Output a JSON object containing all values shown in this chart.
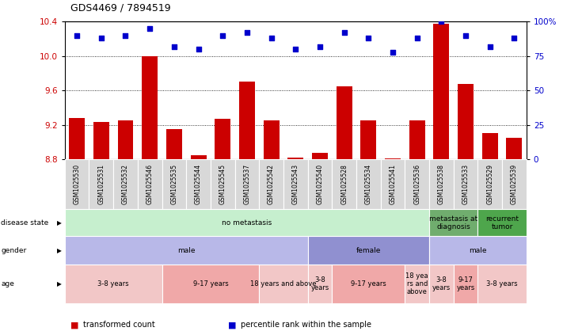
{
  "title": "GDS4469 / 7894519",
  "samples": [
    "GSM1025530",
    "GSM1025531",
    "GSM1025532",
    "GSM1025546",
    "GSM1025535",
    "GSM1025544",
    "GSM1025545",
    "GSM1025537",
    "GSM1025542",
    "GSM1025543",
    "GSM1025540",
    "GSM1025528",
    "GSM1025534",
    "GSM1025541",
    "GSM1025536",
    "GSM1025538",
    "GSM1025533",
    "GSM1025529",
    "GSM1025539"
  ],
  "transformed_counts": [
    9.28,
    9.23,
    9.25,
    10.0,
    9.15,
    8.85,
    9.27,
    9.7,
    9.25,
    8.82,
    8.87,
    9.65,
    9.25,
    8.81,
    9.25,
    10.38,
    9.68,
    9.1,
    9.05
  ],
  "percentile_ranks": [
    90,
    88,
    90,
    95,
    82,
    80,
    90,
    92,
    88,
    80,
    82,
    92,
    88,
    78,
    88,
    100,
    90,
    82,
    88
  ],
  "bar_color": "#cc0000",
  "dot_color": "#0000cc",
  "ylim_left": [
    8.8,
    10.4
  ],
  "ylim_right": [
    0,
    100
  ],
  "yticks_left": [
    8.8,
    9.2,
    9.6,
    10.0,
    10.4
  ],
  "yticks_right": [
    0,
    25,
    50,
    75,
    100
  ],
  "grid_values": [
    9.2,
    9.6,
    10.0
  ],
  "disease_state_groups": [
    {
      "label": "no metastasis",
      "start": 0,
      "end": 15,
      "color": "#c6efce"
    },
    {
      "label": "metastasis at\ndiagnosis",
      "start": 15,
      "end": 17,
      "color": "#70ad6e"
    },
    {
      "label": "recurrent\ntumor",
      "start": 17,
      "end": 19,
      "color": "#4ea64c"
    }
  ],
  "gender_groups": [
    {
      "label": "male",
      "start": 0,
      "end": 10,
      "color": "#b8b8e8"
    },
    {
      "label": "female",
      "start": 10,
      "end": 15,
      "color": "#9090d0"
    },
    {
      "label": "male",
      "start": 15,
      "end": 19,
      "color": "#b8b8e8"
    }
  ],
  "age_groups": [
    {
      "label": "3-8 years",
      "start": 0,
      "end": 4,
      "color": "#f2c7c7"
    },
    {
      "label": "9-17 years",
      "start": 4,
      "end": 8,
      "color": "#f0a8a8"
    },
    {
      "label": "18 years and above",
      "start": 8,
      "end": 10,
      "color": "#f2c7c7"
    },
    {
      "label": "3-8\nyears",
      "start": 10,
      "end": 11,
      "color": "#f2c7c7"
    },
    {
      "label": "9-17 years",
      "start": 11,
      "end": 14,
      "color": "#f0a8a8"
    },
    {
      "label": "18 yea\nrs and\nabove",
      "start": 14,
      "end": 15,
      "color": "#f2c7c7"
    },
    {
      "label": "3-8\nyears",
      "start": 15,
      "end": 16,
      "color": "#f2c7c7"
    },
    {
      "label": "9-17\nyears",
      "start": 16,
      "end": 17,
      "color": "#f0a8a8"
    },
    {
      "label": "3-8 years",
      "start": 17,
      "end": 19,
      "color": "#f2c7c7"
    }
  ],
  "row_labels": [
    "disease state",
    "gender",
    "age"
  ],
  "legend_items": [
    {
      "color": "#cc0000",
      "label": "transformed count"
    },
    {
      "color": "#0000cc",
      "label": "percentile rank within the sample"
    }
  ],
  "background_color": "#ffffff",
  "xtick_bg_color": "#d8d8d8",
  "tick_label_color_left": "#cc0000",
  "tick_label_color_right": "#0000cc",
  "bar_base": 8.8
}
